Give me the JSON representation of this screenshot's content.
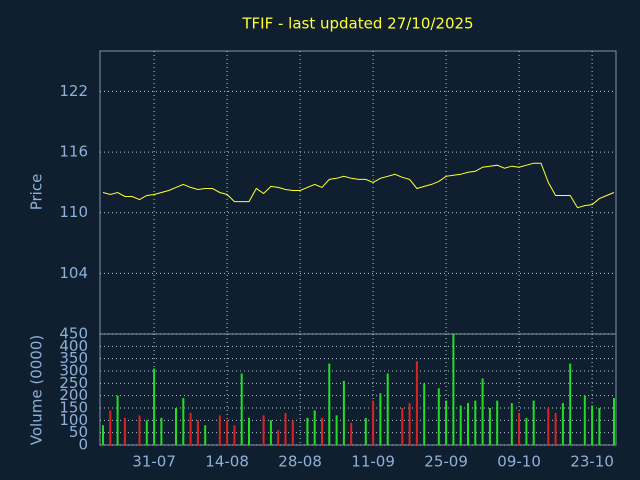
{
  "chart_data": [
    {
      "type": "line",
      "title": "TFIF - last updated 27/10/2025",
      "ylabel": "Price",
      "color": "#ffff33",
      "values": [
        112.0,
        111.8,
        112.0,
        111.6,
        111.6,
        111.3,
        111.7,
        111.8,
        112.0,
        112.2,
        112.5,
        112.8,
        112.5,
        112.3,
        112.4,
        112.4,
        112.0,
        111.8,
        111.1,
        111.1,
        111.1,
        112.4,
        111.9,
        112.6,
        112.5,
        112.3,
        112.2,
        112.2,
        112.5,
        112.8,
        112.5,
        113.3,
        113.4,
        113.6,
        113.4,
        113.3,
        113.3,
        113.0,
        113.4,
        113.6,
        113.8,
        113.5,
        113.3,
        112.4,
        112.6,
        112.8,
        113.1,
        113.6,
        113.7,
        113.8,
        114.0,
        114.1,
        114.5,
        114.6,
        114.7,
        114.4,
        114.6,
        114.5,
        114.7,
        114.9,
        114.9,
        113.0,
        111.7,
        111.7,
        111.7,
        110.5,
        110.7,
        110.8,
        111.4,
        111.7,
        112.0
      ],
      "ylim": [
        98,
        126
      ],
      "yticks": [
        104,
        110,
        116,
        122
      ],
      "grid": true
    },
    {
      "type": "bar",
      "ylabel": "Volume (0000)",
      "up_color": "#22dd22",
      "down_color": "#dd2222",
      "categories": [
        null,
        null,
        null,
        null,
        null,
        null,
        null,
        "31-07",
        null,
        null,
        null,
        null,
        null,
        null,
        null,
        null,
        null,
        "14-08",
        null,
        null,
        null,
        null,
        null,
        null,
        null,
        null,
        null,
        "28-08",
        null,
        null,
        null,
        null,
        null,
        null,
        null,
        null,
        null,
        "11-09",
        null,
        null,
        null,
        null,
        null,
        null,
        null,
        null,
        null,
        "25-09",
        null,
        null,
        null,
        null,
        null,
        null,
        null,
        null,
        null,
        "09-10",
        null,
        null,
        null,
        null,
        null,
        null,
        null,
        null,
        null,
        "23-10",
        null,
        null,
        null
      ],
      "values": [
        80,
        140,
        200,
        110,
        0,
        120,
        100,
        310,
        110,
        0,
        150,
        190,
        130,
        100,
        80,
        0,
        120,
        100,
        80,
        290,
        110,
        0,
        120,
        100,
        60,
        130,
        100,
        0,
        110,
        140,
        110,
        330,
        120,
        260,
        90,
        0,
        110,
        180,
        210,
        290,
        0,
        150,
        170,
        340,
        250,
        0,
        230,
        180,
        450,
        160,
        170,
        180,
        270,
        150,
        180,
        0,
        170,
        130,
        110,
        180,
        0,
        150,
        130,
        170,
        330,
        0,
        200,
        160,
        150,
        0,
        190
      ],
      "ylim": [
        0,
        450
      ],
      "yticks": [
        0,
        50,
        100,
        150,
        200,
        250,
        300,
        350,
        400,
        450
      ],
      "grid": true
    }
  ]
}
